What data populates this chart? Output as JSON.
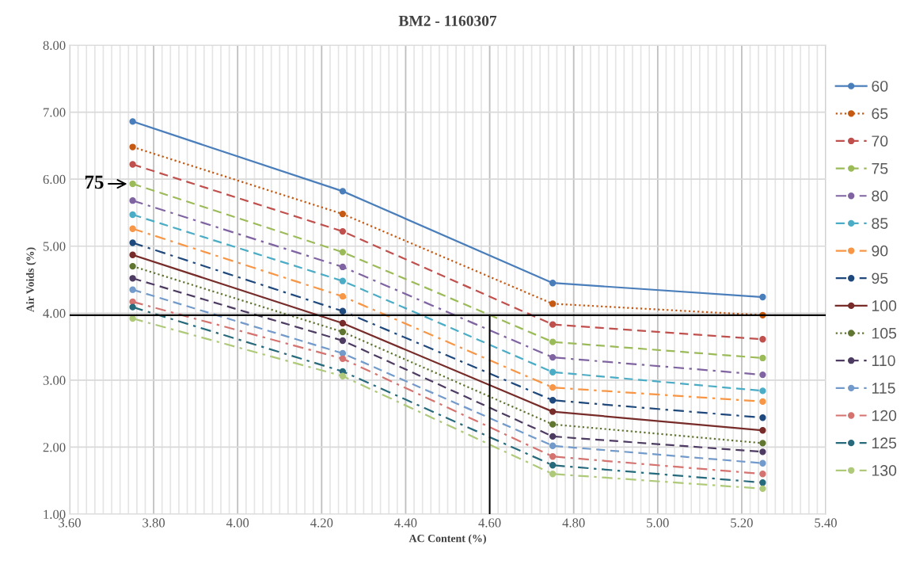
{
  "chart_data": {
    "type": "line",
    "title": "BM2 - 1160307",
    "xlabel": "AC Content (%)",
    "ylabel": "Air Voids (%)",
    "x": [
      3.75,
      4.25,
      4.75,
      5.25
    ],
    "xlim": [
      3.6,
      5.4
    ],
    "xticks": [
      {
        "value": 3.6,
        "label": "3.60"
      },
      {
        "value": 3.8,
        "label": "3.80"
      },
      {
        "value": 4.0,
        "label": "4.00"
      },
      {
        "value": 4.2,
        "label": "4.20"
      },
      {
        "value": 4.4,
        "label": "4.40"
      },
      {
        "value": 4.6,
        "label": "4.60"
      },
      {
        "value": 4.8,
        "label": "4.80"
      },
      {
        "value": 5.0,
        "label": "5.00"
      },
      {
        "value": 5.2,
        "label": "5.20"
      },
      {
        "value": 5.4,
        "label": "5.40"
      }
    ],
    "ylim": [
      1,
      8
    ],
    "yticks": [
      {
        "value": 1,
        "label": "1.00"
      },
      {
        "value": 2,
        "label": "2.00"
      },
      {
        "value": 3,
        "label": "3.00"
      },
      {
        "value": 4,
        "label": "4.00"
      },
      {
        "value": 5,
        "label": "5.00"
      },
      {
        "value": 6,
        "label": "6.00"
      },
      {
        "value": 7,
        "label": "7.00"
      },
      {
        "value": 8,
        "label": "8.00"
      }
    ],
    "grid": true,
    "legend": "right",
    "marker": "circle",
    "series": [
      {
        "name": "60",
        "color": "#4a7ebb",
        "line_style": "solid",
        "values": [
          6.86,
          5.82,
          4.45,
          4.24
        ]
      },
      {
        "name": "65",
        "color": "#c65911",
        "line_style": "dotted",
        "values": [
          6.48,
          5.48,
          4.14,
          3.97
        ]
      },
      {
        "name": "70",
        "color": "#c0504d",
        "line_style": "dashed",
        "values": [
          6.22,
          5.22,
          3.83,
          3.61
        ]
      },
      {
        "name": "75",
        "color": "#9bbb59",
        "line_style": "dashed",
        "values": [
          5.93,
          4.91,
          3.57,
          3.33
        ]
      },
      {
        "name": "80",
        "color": "#8064a2",
        "line_style": "dashdot",
        "values": [
          5.68,
          4.69,
          3.34,
          3.08
        ]
      },
      {
        "name": "85",
        "color": "#4bacc6",
        "line_style": "dashed",
        "values": [
          5.47,
          4.48,
          3.12,
          2.84
        ]
      },
      {
        "name": "90",
        "color": "#f79646",
        "line_style": "dashdot",
        "values": [
          5.26,
          4.25,
          2.89,
          2.68
        ]
      },
      {
        "name": "95",
        "color": "#1f497d",
        "line_style": "dashdot",
        "values": [
          5.05,
          4.03,
          2.7,
          2.44
        ]
      },
      {
        "name": "100",
        "color": "#772c2a",
        "line_style": "solid",
        "values": [
          4.87,
          3.85,
          2.53,
          2.25
        ]
      },
      {
        "name": "105",
        "color": "#5f7530",
        "line_style": "dotted",
        "values": [
          4.7,
          3.72,
          2.34,
          2.06
        ]
      },
      {
        "name": "110",
        "color": "#4d3b62",
        "line_style": "dashed",
        "values": [
          4.52,
          3.59,
          2.16,
          1.93
        ]
      },
      {
        "name": "115",
        "color": "#729aca",
        "line_style": "dashed",
        "values": [
          4.35,
          3.4,
          2.02,
          1.76
        ]
      },
      {
        "name": "120",
        "color": "#d4736f",
        "line_style": "dashdot",
        "values": [
          4.17,
          3.32,
          1.86,
          1.6
        ]
      },
      {
        "name": "125",
        "color": "#276a7c",
        "line_style": "dashdot",
        "values": [
          4.09,
          3.13,
          1.73,
          1.47
        ]
      },
      {
        "name": "130",
        "color": "#afc97a",
        "line_style": "dashdot",
        "values": [
          3.92,
          3.06,
          1.6,
          1.38
        ]
      }
    ],
    "ref_lines": [
      {
        "axis": "y",
        "value": 3.97,
        "color": "#000000"
      },
      {
        "axis": "x",
        "value": 4.6,
        "color": "#000000"
      }
    ],
    "annotations": [
      {
        "text": "75",
        "x": 3.75,
        "y": 5.93
      }
    ]
  }
}
